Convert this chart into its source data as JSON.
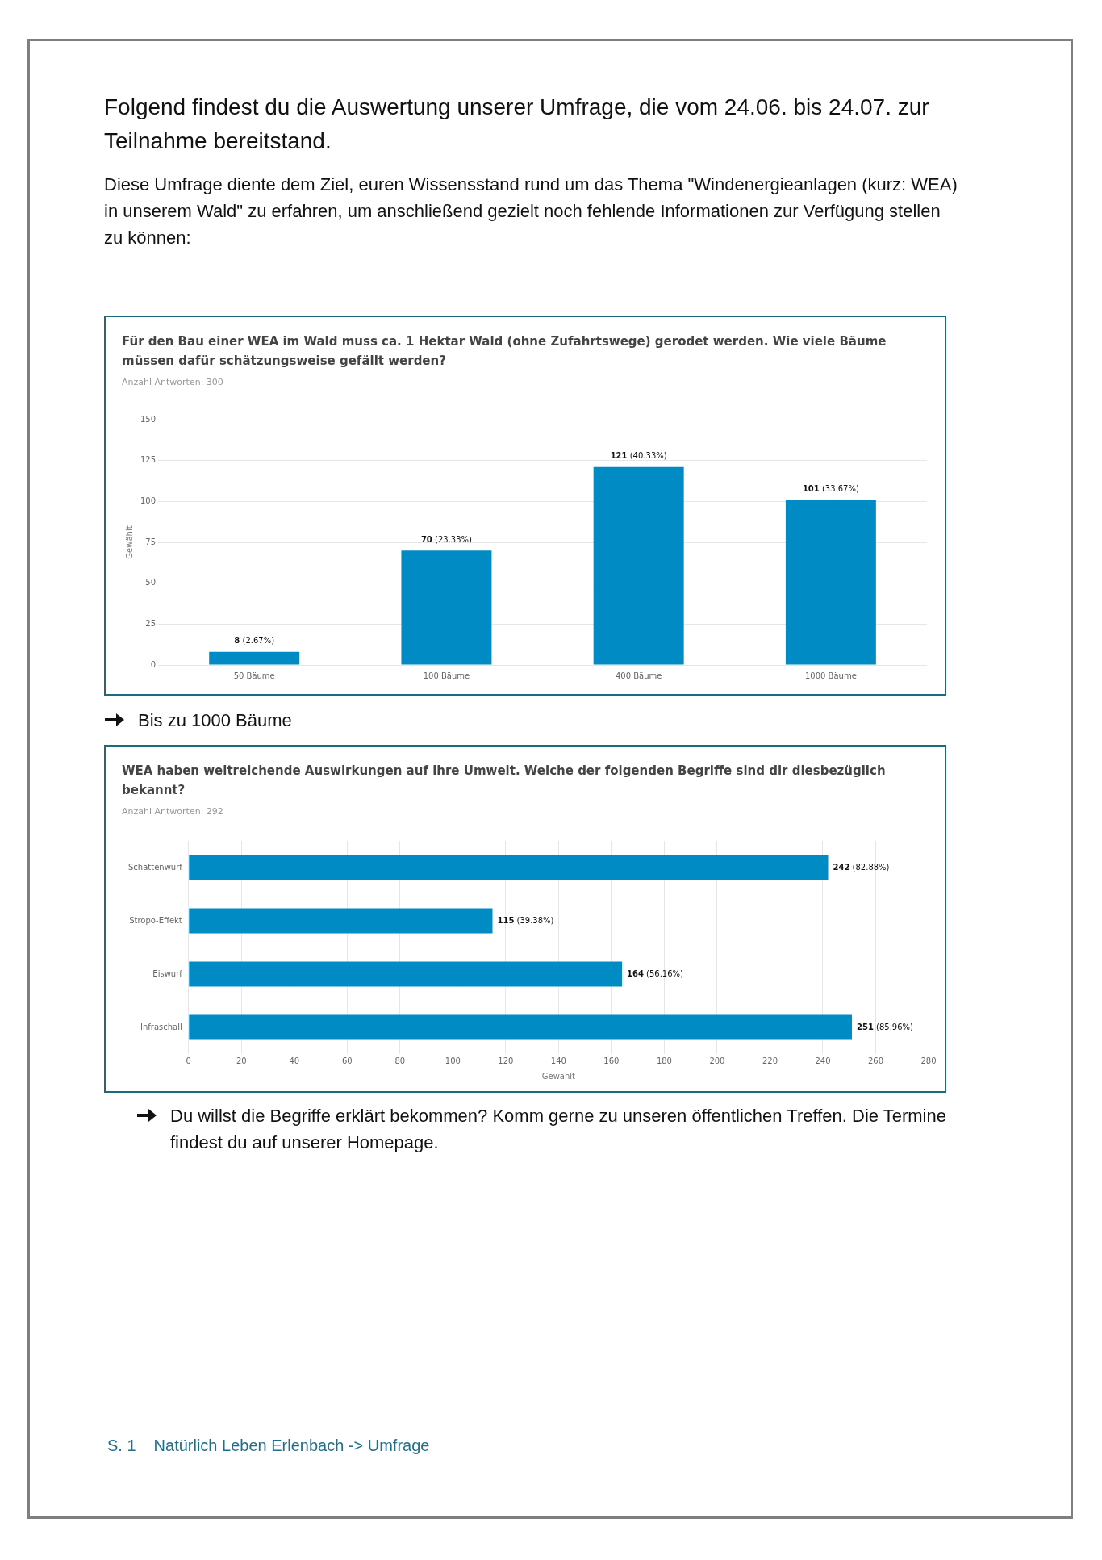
{
  "chart_data": [
    {
      "type": "bar",
      "title": "Für den Bau einer WEA im Wald muss ca. 1 Hektar Wald (ohne Zufahrtswege) gerodet werden. Wie viele Bäume müssen dafür schätzungsweise gefällt werden?",
      "subtitle": "Anzahl Antworten: 300",
      "ylabel": "Gewählt",
      "categories": [
        "50 Bäume",
        "100 Bäume",
        "400 Bäume",
        "1000 Bäume"
      ],
      "values": [
        8,
        70,
        121,
        101
      ],
      "color": "#008bc4",
      "value_labels": [
        "8 (2.67%)",
        "70 (23.33%)",
        "121 (40.33%)",
        "101 (33.67%)"
      ],
      "ylim": [
        0,
        150
      ],
      "yticks": [
        0,
        25,
        50,
        75,
        100,
        125,
        150
      ],
      "grid": "y",
      "annotations": [
        "Folgend findest du die Auswertung unserer Umfrage, die vom 24.06. bis 24.07. zur Teilnahme bereitstand.",
        "Diese Umfrage diente dem Ziel, euren Wissensstand rund um das Thema \"Windenergieanlagen (kurz: WEA) in unserem Wald\" zu erfahren, um anschließend gezielt noch fehlende Informationen zur Verfügung stellen zu können:",
        "Bis zu 1000 Bäume"
      ]
    },
    {
      "type": "bar",
      "orientation": "horizontal",
      "title": "WEA haben weitreichende Auswirkungen auf ihre Umwelt. Welche der folgenden Begriffe sind dir diesbezüglich bekannt?",
      "subtitle": "Anzahl Antworten: 292",
      "xlabel": "Gewählt",
      "categories": [
        "Schattenwurf",
        "Stropo-Effekt",
        "Eiswurf",
        "Infraschall"
      ],
      "values": [
        242,
        115,
        164,
        251
      ],
      "color": "#008bc4",
      "value_labels": [
        "242 (82.88%)",
        "115 (39.38%)",
        "164 (56.16%)",
        "251 (85.96%)"
      ],
      "xlim": [
        0,
        280
      ],
      "xticks": [
        0,
        20,
        40,
        60,
        80,
        100,
        120,
        140,
        160,
        180,
        200,
        220,
        240,
        260,
        280
      ],
      "grid": "x",
      "annotations": [
        "Du willst die Begriffe erklärt bekommen? Komm gerne zu unseren öffentlichen Treffen. Die Termine findest du auf unserer Homepage.",
        "S. 1",
        "Natürlich Leben Erlenbach -> Umfrage"
      ]
    }
  ]
}
